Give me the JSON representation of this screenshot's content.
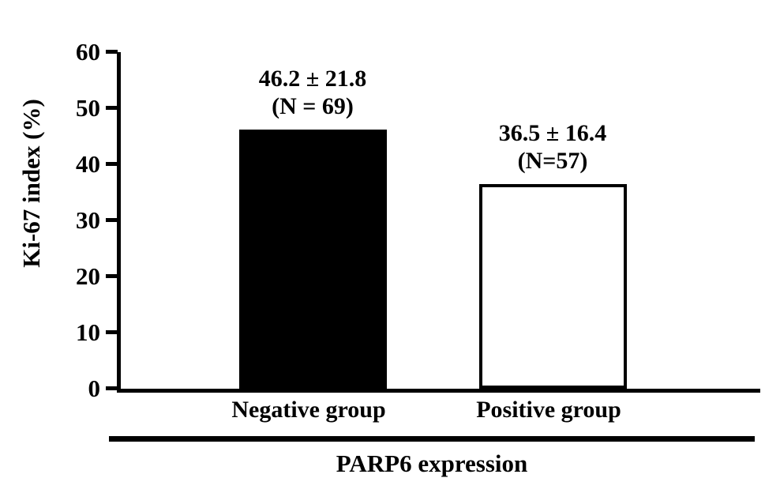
{
  "chart_data": {
    "type": "bar",
    "title": "",
    "xlabel": "PARP6 expression",
    "ylabel": "Ki-67 index (%)",
    "ylim": [
      0,
      60
    ],
    "yticks": [
      0,
      10,
      20,
      30,
      40,
      50,
      60
    ],
    "grid": false,
    "legend": false,
    "categories": [
      "Negative group",
      "Positive group"
    ],
    "values": [
      46.2,
      36.5
    ],
    "series": [
      {
        "name": "Negative group",
        "value": 46.2,
        "sd": 21.8,
        "n": 69,
        "fill": "#000000",
        "annotation_line1": "46.2 ± 21.8",
        "annotation_line2": "(N = 69)"
      },
      {
        "name": "Positive group",
        "value": 36.5,
        "sd": 16.4,
        "n": 57,
        "fill": "#ffffff",
        "annotation_line1": "36.5 ± 16.4",
        "annotation_line2": "(N=57)"
      }
    ]
  }
}
